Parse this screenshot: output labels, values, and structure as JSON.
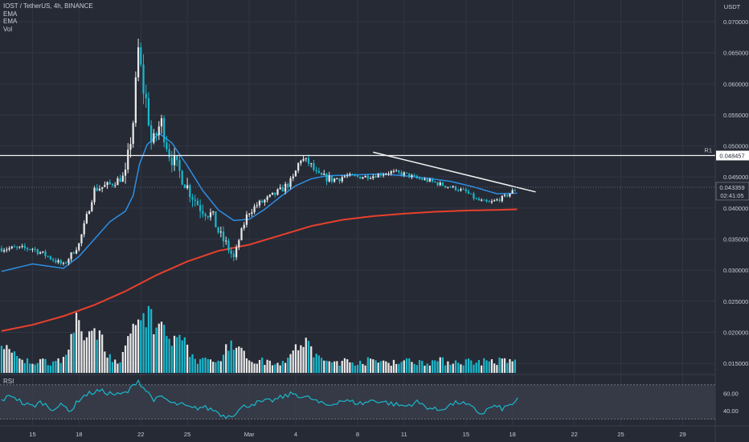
{
  "chart_data": {
    "type": "candlestick",
    "title": "IOST / TetherUS, 4h, BINANCE",
    "legend": [
      "EMA",
      "EMA",
      "Vol"
    ],
    "currency": "USDT",
    "y_ticks": [
      "0.070000",
      "0.065000",
      "0.060000",
      "0.055000",
      "0.050000",
      "0.045000",
      "0.040000",
      "0.035000",
      "0.030000",
      "0.025000",
      "0.020000",
      "0.015000"
    ],
    "y_tick_values": [
      0.07,
      0.065,
      0.06,
      0.055,
      0.05,
      0.045,
      0.04,
      0.035,
      0.03,
      0.025,
      0.02,
      0.015
    ],
    "ylim": [
      0.0132,
      0.0735
    ],
    "resistance": {
      "label": "R1",
      "value": 0.048457,
      "value_label": "0.048457"
    },
    "last_price": {
      "value": 0.043359,
      "value_label": "0.043359",
      "countdown": "02:41:05"
    },
    "x_tick_labels": [
      "15",
      "18",
      "22",
      "25",
      "Mar",
      "4",
      "8",
      "11",
      "15",
      "18",
      "22",
      "25",
      "29"
    ],
    "x_tick_days": [
      0,
      3,
      7,
      10,
      14,
      17,
      21,
      24,
      28,
      31,
      35,
      38,
      42
    ],
    "day_range": [
      -2.1,
      44.1
    ],
    "bars_per_day": 6,
    "anchors": [
      [
        0,
        0.0335
      ],
      [
        1,
        0.0322
      ],
      [
        2,
        0.0308
      ],
      [
        3,
        0.0342
      ],
      [
        4,
        0.043
      ],
      [
        5,
        0.0438
      ],
      [
        6,
        0.0452
      ],
      [
        6.5,
        0.054
      ],
      [
        6.85,
        0.066
      ],
      [
        7.1,
        0.0598
      ],
      [
        7.4,
        0.0565
      ],
      [
        7.7,
        0.0498
      ],
      [
        8.3,
        0.054
      ],
      [
        8.8,
        0.049
      ],
      [
        9.4,
        0.0462
      ],
      [
        10.2,
        0.0425
      ],
      [
        10.8,
        0.0402
      ],
      [
        11.6,
        0.0388
      ],
      [
        12.1,
        0.0356
      ],
      [
        12.6,
        0.0338
      ],
      [
        13.0,
        0.0318
      ],
      [
        13.4,
        0.0355
      ],
      [
        13.9,
        0.0392
      ],
      [
        14.5,
        0.0405
      ],
      [
        15.4,
        0.0418
      ],
      [
        16.2,
        0.0432
      ],
      [
        16.8,
        0.0445
      ],
      [
        17.3,
        0.048
      ],
      [
        17.9,
        0.0472
      ],
      [
        18.4,
        0.0452
      ],
      [
        19.4,
        0.0446
      ],
      [
        20.3,
        0.0452
      ],
      [
        21.1,
        0.045
      ],
      [
        22.0,
        0.0452
      ],
      [
        23.1,
        0.0458
      ],
      [
        24.0,
        0.0455
      ],
      [
        24.8,
        0.0448
      ],
      [
        25.6,
        0.0444
      ],
      [
        26.5,
        0.0437
      ],
      [
        27.3,
        0.0432
      ],
      [
        28.0,
        0.0426
      ],
      [
        28.7,
        0.0413
      ],
      [
        29.5,
        0.0408
      ],
      [
        30.5,
        0.0418
      ],
      [
        31.3,
        0.0432
      ]
    ],
    "ema_fast": [
      [
        -2.0,
        0.0298
      ],
      [
        0,
        0.031
      ],
      [
        2,
        0.0303
      ],
      [
        3,
        0.0322
      ],
      [
        5,
        0.0378
      ],
      [
        6,
        0.0395
      ],
      [
        6.5,
        0.042
      ],
      [
        6.9,
        0.047
      ],
      [
        7.4,
        0.0502
      ],
      [
        8.2,
        0.052
      ],
      [
        9.0,
        0.0505
      ],
      [
        10.0,
        0.0468
      ],
      [
        11.0,
        0.0428
      ],
      [
        12.0,
        0.0397
      ],
      [
        13.0,
        0.038
      ],
      [
        14.0,
        0.0382
      ],
      [
        15.0,
        0.0398
      ],
      [
        16.0,
        0.0418
      ],
      [
        17.0,
        0.0436
      ],
      [
        18.0,
        0.0447
      ],
      [
        19.0,
        0.0452
      ],
      [
        20.5,
        0.0453
      ],
      [
        22.5,
        0.0455
      ],
      [
        24.0,
        0.0452
      ],
      [
        25.5,
        0.0448
      ],
      [
        27.0,
        0.0443
      ],
      [
        28.5,
        0.0434
      ],
      [
        30.0,
        0.0423
      ],
      [
        31.3,
        0.0424
      ]
    ],
    "ema_slow": [
      [
        -2.0,
        0.0202
      ],
      [
        0,
        0.0212
      ],
      [
        2,
        0.0226
      ],
      [
        4,
        0.0244
      ],
      [
        6,
        0.0266
      ],
      [
        8,
        0.0292
      ],
      [
        10,
        0.0314
      ],
      [
        12,
        0.0331
      ],
      [
        14,
        0.0341
      ],
      [
        16,
        0.0356
      ],
      [
        18,
        0.0371
      ],
      [
        20,
        0.0381
      ],
      [
        22,
        0.0387
      ],
      [
        24,
        0.0391
      ],
      [
        26,
        0.0394
      ],
      [
        28,
        0.0396
      ],
      [
        30,
        0.0397
      ],
      [
        31.3,
        0.0398
      ]
    ],
    "trendline": [
      [
        22.0,
        0.049
      ],
      [
        32.5,
        0.0426
      ]
    ],
    "rsi": {
      "label": "RSI",
      "ticks": [
        "60.00",
        "40.00"
      ],
      "tick_values": [
        60,
        40
      ],
      "range": [
        22,
        82
      ],
      "bands": [
        70,
        30
      ],
      "points": [
        [
          -2.0,
          52
        ],
        [
          -1.3,
          58
        ],
        [
          -0.6,
          48
        ],
        [
          0,
          45
        ],
        [
          0.6,
          50
        ],
        [
          1.2,
          42
        ],
        [
          1.9,
          46
        ],
        [
          2.5,
          40
        ],
        [
          3.1,
          55
        ],
        [
          3.7,
          60
        ],
        [
          4.3,
          63
        ],
        [
          5.0,
          60
        ],
        [
          5.6,
          58
        ],
        [
          6.2,
          62
        ],
        [
          6.8,
          76
        ],
        [
          7.1,
          68
        ],
        [
          7.5,
          60
        ],
        [
          7.9,
          52
        ],
        [
          8.4,
          56
        ],
        [
          9.0,
          48
        ],
        [
          9.6,
          47
        ],
        [
          10.3,
          42
        ],
        [
          11.0,
          44
        ],
        [
          11.8,
          40
        ],
        [
          12.4,
          33
        ],
        [
          13.0,
          36
        ],
        [
          13.6,
          44
        ],
        [
          14.2,
          48
        ],
        [
          14.9,
          50
        ],
        [
          15.6,
          52
        ],
        [
          16.2,
          56
        ],
        [
          16.9,
          60
        ],
        [
          17.4,
          56
        ],
        [
          18.0,
          54
        ],
        [
          18.6,
          48
        ],
        [
          19.2,
          46
        ],
        [
          19.9,
          52
        ],
        [
          20.6,
          50
        ],
        [
          21.3,
          48
        ],
        [
          22.0,
          52
        ],
        [
          22.7,
          50
        ],
        [
          23.4,
          47
        ],
        [
          24.1,
          45
        ],
        [
          24.8,
          50
        ],
        [
          25.5,
          44
        ],
        [
          26.2,
          40
        ],
        [
          26.9,
          46
        ],
        [
          27.6,
          50
        ],
        [
          28.3,
          44
        ],
        [
          29.0,
          36
        ],
        [
          29.7,
          45
        ],
        [
          30.4,
          42
        ],
        [
          31.0,
          48
        ],
        [
          31.4,
          54
        ]
      ]
    },
    "volume_peaks": [
      [
        -2,
        0.3
      ],
      [
        3,
        0.55
      ],
      [
        4,
        0.5
      ],
      [
        6.9,
        0.9
      ],
      [
        7.5,
        0.7
      ],
      [
        8.2,
        0.55
      ],
      [
        9.5,
        0.35
      ],
      [
        13,
        0.3
      ],
      [
        17.5,
        0.3
      ]
    ]
  },
  "colors": {
    "background": "#262a35",
    "grid": "#323644",
    "text": "#c9ccd4",
    "up": "#e8e8e8",
    "down": "#19b8cc",
    "ema_fast": "#2d8fe4",
    "ema_slow": "#e8402d",
    "white_line": "#f2f2f2",
    "rsi_line": "#19b8cc",
    "rsi_band_fill": "#3b3f4c"
  }
}
